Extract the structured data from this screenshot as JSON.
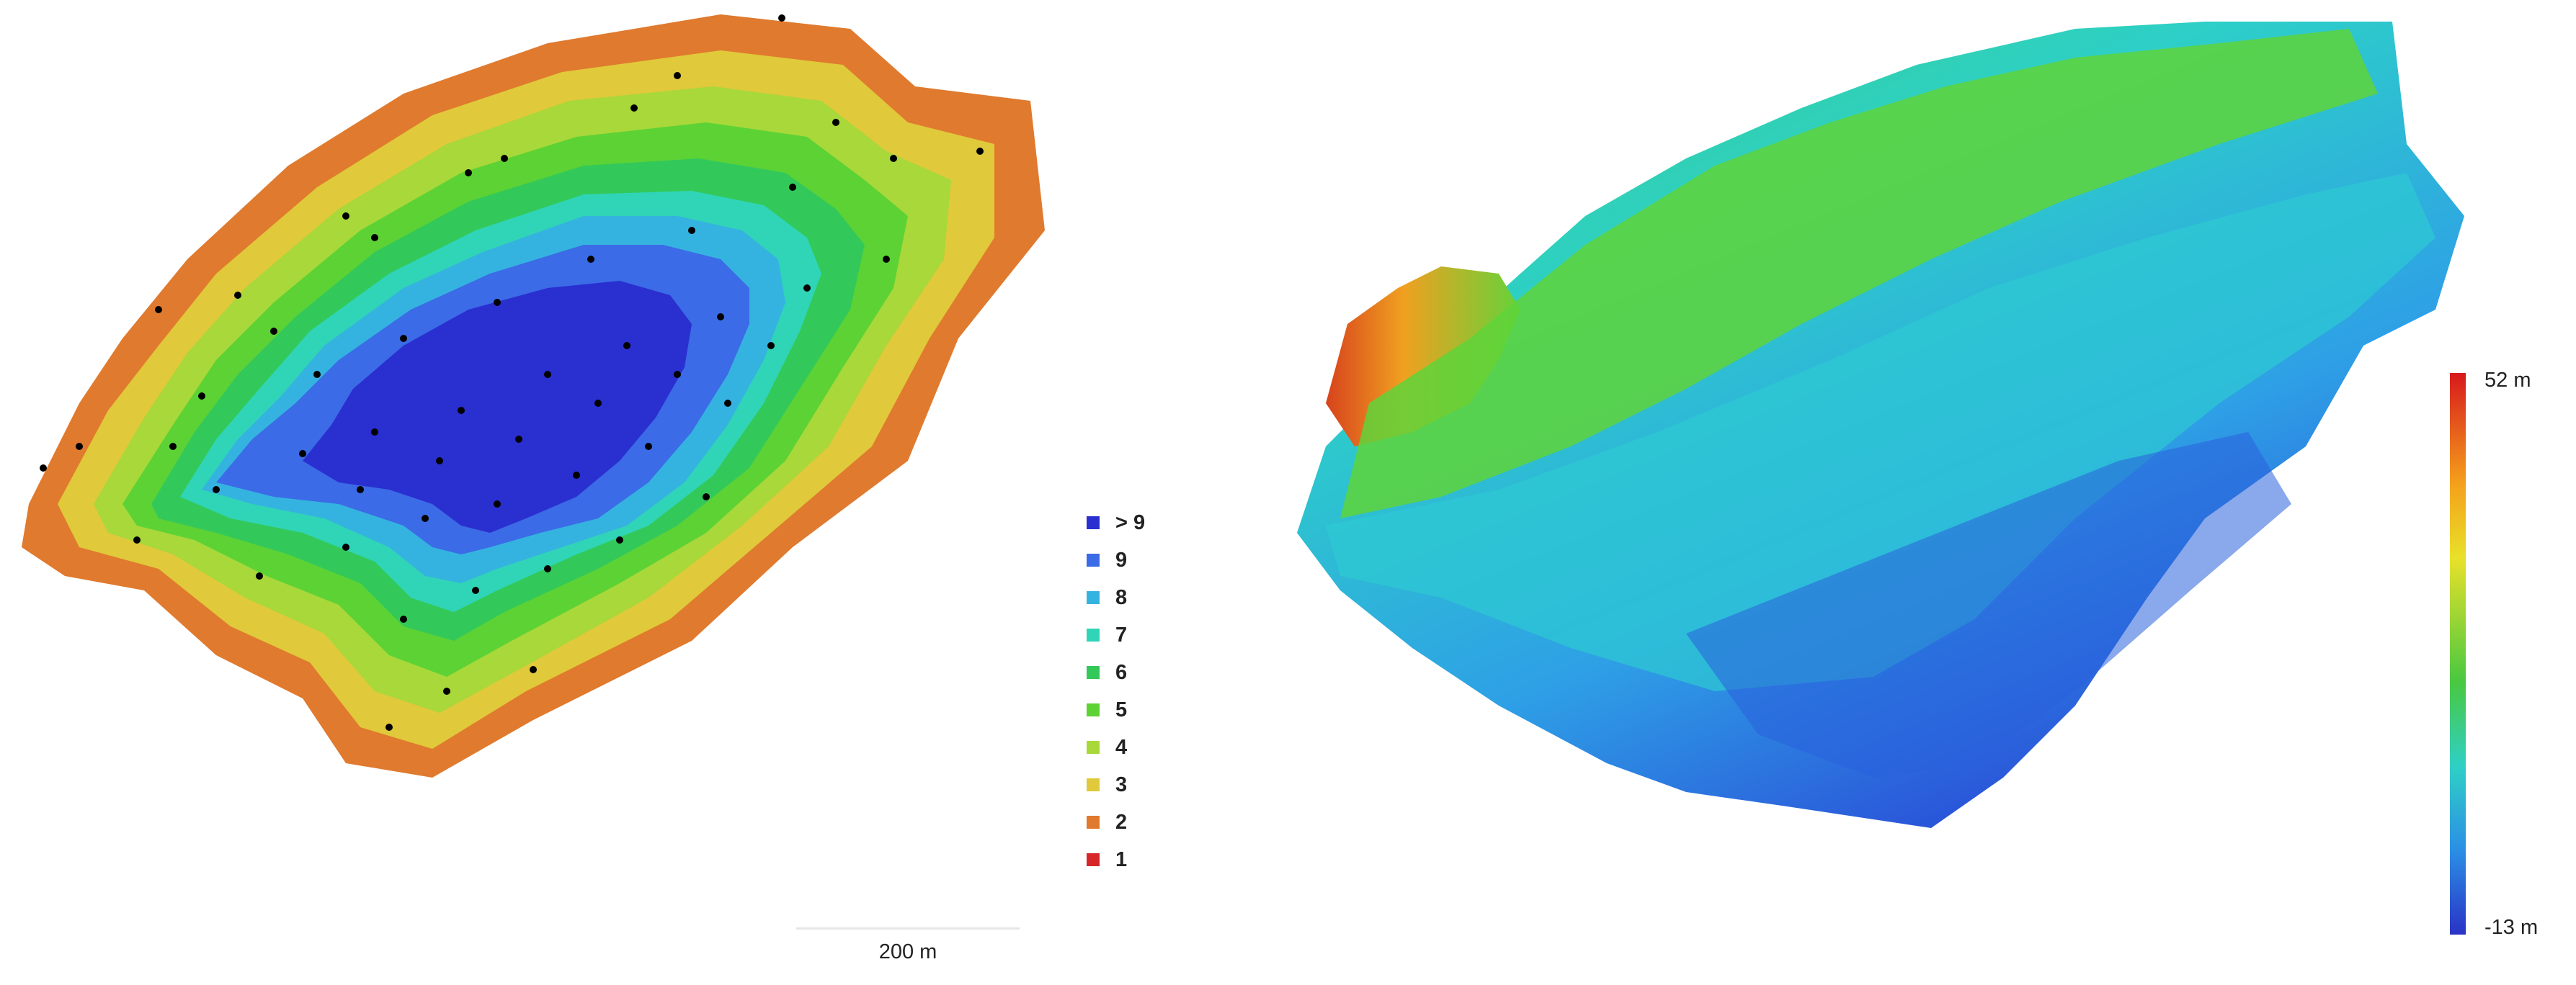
{
  "overlap_map": {
    "legend": [
      {
        "label": "> 9",
        "color": "#2a2fd0"
      },
      {
        "label": "9",
        "color": "#3b6be6"
      },
      {
        "label": "8",
        "color": "#35b3e0"
      },
      {
        "label": "7",
        "color": "#2fd5b6"
      },
      {
        "label": "6",
        "color": "#33c95a"
      },
      {
        "label": "5",
        "color": "#5dd234"
      },
      {
        "label": "4",
        "color": "#a8d83a"
      },
      {
        "label": "3",
        "color": "#e0c93a"
      },
      {
        "label": "2",
        "color": "#e07a2e"
      },
      {
        "label": "1",
        "color": "#d7262a"
      }
    ],
    "scale_bar_label": "200 m"
  },
  "dsm_map": {
    "colorbar_max_label": "52 m",
    "colorbar_min_label": "-13 m"
  }
}
